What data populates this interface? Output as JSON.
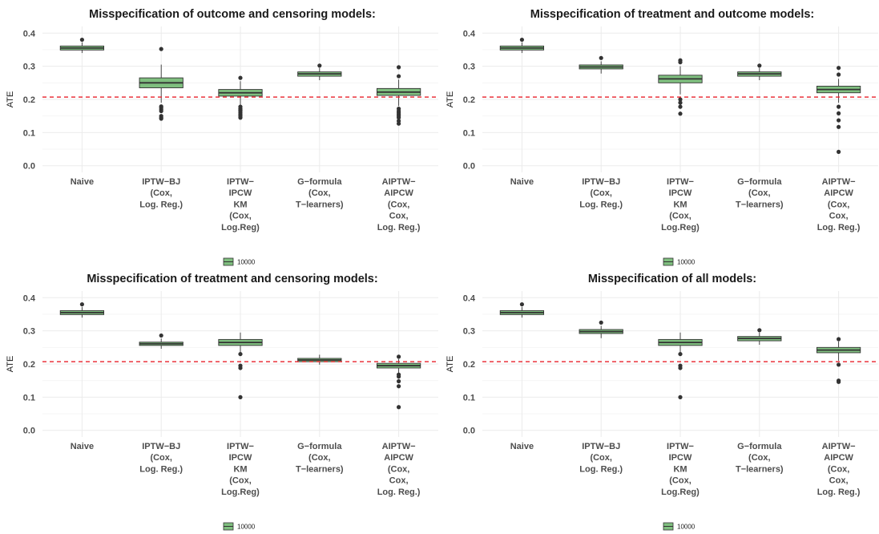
{
  "colors": {
    "box_fill": "#7FBF7F",
    "box_stroke": "#333333",
    "reference_line": "#E8202A",
    "grid": "#EBEBEB",
    "outlier": "#333333"
  },
  "legend": {
    "label": "10000"
  },
  "chart_data": [
    {
      "type": "box",
      "title": "Misspecification of outcome and censoring models:",
      "ylabel": "ATE",
      "xlabel": "",
      "ylim": [
        -0.02,
        0.42
      ],
      "yticks": [
        "0.0",
        "0.1",
        "0.2",
        "0.3",
        "0.4"
      ],
      "reference_line": 0.207,
      "series_name": "10000",
      "categories": [
        [
          "Naive"
        ],
        [
          "IPTW−BJ",
          "(Cox,",
          "Log. Reg.)"
        ],
        [
          "IPTW−",
          "IPCW",
          "KM",
          "(Cox,",
          "Log.Reg)"
        ],
        [
          "G−formula",
          "(Cox,",
          "T−learners)"
        ],
        [
          "AIPTW−",
          "AIPCW",
          "(Cox,",
          "Cox,",
          "Log. Reg.)"
        ]
      ],
      "boxes": [
        {
          "lower": 0.34,
          "q1": 0.349,
          "median": 0.355,
          "q3": 0.361,
          "upper": 0.372,
          "outliers": [
            0.38
          ]
        },
        {
          "lower": 0.19,
          "q1": 0.235,
          "median": 0.25,
          "q3": 0.265,
          "upper": 0.305,
          "outliers": [
            0.352,
            0.179,
            0.175,
            0.17,
            0.165,
            0.15,
            0.145,
            0.142
          ]
        },
        {
          "lower": 0.18,
          "q1": 0.21,
          "median": 0.22,
          "q3": 0.23,
          "upper": 0.255,
          "outliers": [
            0.265,
            0.178,
            0.172,
            0.168,
            0.165,
            0.16,
            0.155,
            0.15,
            0.145
          ]
        },
        {
          "lower": 0.258,
          "q1": 0.27,
          "median": 0.277,
          "q3": 0.283,
          "upper": 0.295,
          "outliers": [
            0.302
          ]
        },
        {
          "lower": 0.18,
          "q1": 0.212,
          "median": 0.222,
          "q3": 0.233,
          "upper": 0.26,
          "outliers": [
            0.297,
            0.27,
            0.172,
            0.165,
            0.16,
            0.155,
            0.15,
            0.145,
            0.135,
            0.127
          ]
        }
      ]
    },
    {
      "type": "box",
      "title": "Misspecification of treatment and outcome models:",
      "ylabel": "ATE",
      "xlabel": "",
      "ylim": [
        -0.02,
        0.42
      ],
      "yticks": [
        "0.0",
        "0.1",
        "0.2",
        "0.3",
        "0.4"
      ],
      "reference_line": 0.207,
      "series_name": "10000",
      "categories": [
        [
          "Naive"
        ],
        [
          "IPTW−BJ",
          "(Cox,",
          "Log. Reg.)"
        ],
        [
          "IPTW−",
          "IPCW",
          "KM",
          "(Cox,",
          "Log.Reg)"
        ],
        [
          "G−formula",
          "(Cox,",
          "T−learners)"
        ],
        [
          "AIPTW−",
          "AIPCW",
          "(Cox,",
          "Cox,",
          "Log. Reg.)"
        ]
      ],
      "boxes": [
        {
          "lower": 0.34,
          "q1": 0.349,
          "median": 0.355,
          "q3": 0.361,
          "upper": 0.372,
          "outliers": [
            0.38
          ]
        },
        {
          "lower": 0.278,
          "q1": 0.292,
          "median": 0.298,
          "q3": 0.304,
          "upper": 0.315,
          "outliers": [
            0.325
          ]
        },
        {
          "lower": 0.215,
          "q1": 0.25,
          "median": 0.262,
          "q3": 0.273,
          "upper": 0.3,
          "outliers": [
            0.318,
            0.312,
            0.2,
            0.19,
            0.178,
            0.157
          ]
        },
        {
          "lower": 0.258,
          "q1": 0.27,
          "median": 0.277,
          "q3": 0.283,
          "upper": 0.295,
          "outliers": [
            0.302
          ]
        },
        {
          "lower": 0.19,
          "q1": 0.22,
          "median": 0.23,
          "q3": 0.24,
          "upper": 0.262,
          "outliers": [
            0.295,
            0.275,
            0.178,
            0.158,
            0.137,
            0.117,
            0.042
          ]
        }
      ]
    },
    {
      "type": "box",
      "title": "Misspecification of treatment and censoring models:",
      "ylabel": "ATE",
      "xlabel": "",
      "ylim": [
        -0.02,
        0.42
      ],
      "yticks": [
        "0.0",
        "0.1",
        "0.2",
        "0.3",
        "0.4"
      ],
      "reference_line": 0.207,
      "series_name": "10000",
      "categories": [
        [
          "Naive"
        ],
        [
          "IPTW−BJ",
          "(Cox,",
          "Log. Reg.)"
        ],
        [
          "IPTW−",
          "IPCW",
          "KM",
          "(Cox,",
          "Log.Reg)"
        ],
        [
          "G−formula",
          "(Cox,",
          "T−learners)"
        ],
        [
          "AIPTW−",
          "AIPCW",
          "(Cox,",
          "Cox,",
          "Log. Reg.)"
        ]
      ],
      "boxes": [
        {
          "lower": 0.34,
          "q1": 0.349,
          "median": 0.355,
          "q3": 0.361,
          "upper": 0.372,
          "outliers": [
            0.38
          ]
        },
        {
          "lower": 0.246,
          "q1": 0.256,
          "median": 0.261,
          "q3": 0.266,
          "upper": 0.277,
          "outliers": [
            0.286
          ]
        },
        {
          "lower": 0.235,
          "q1": 0.256,
          "median": 0.265,
          "q3": 0.274,
          "upper": 0.295,
          "outliers": [
            0.23,
            0.195,
            0.188,
            0.1
          ]
        },
        {
          "lower": 0.198,
          "q1": 0.207,
          "median": 0.212,
          "q3": 0.217,
          "upper": 0.228,
          "outliers": []
        },
        {
          "lower": 0.172,
          "q1": 0.188,
          "median": 0.195,
          "q3": 0.202,
          "upper": 0.215,
          "outliers": [
            0.222,
            0.168,
            0.162,
            0.148,
            0.133,
            0.07
          ]
        }
      ]
    },
    {
      "type": "box",
      "title": "Misspecification of all models:",
      "ylabel": "ATE",
      "xlabel": "",
      "ylim": [
        -0.02,
        0.42
      ],
      "yticks": [
        "0.0",
        "0.1",
        "0.2",
        "0.3",
        "0.4"
      ],
      "reference_line": 0.207,
      "series_name": "10000",
      "categories": [
        [
          "Naive"
        ],
        [
          "IPTW−BJ",
          "(Cox,",
          "Log. Reg.)"
        ],
        [
          "IPTW−",
          "IPCW",
          "KM",
          "(Cox,",
          "Log.Reg)"
        ],
        [
          "G−formula",
          "(Cox,",
          "T−learners)"
        ],
        [
          "AIPTW−",
          "AIPCW",
          "(Cox,",
          "Cox,",
          "Log. Reg.)"
        ]
      ],
      "boxes": [
        {
          "lower": 0.34,
          "q1": 0.349,
          "median": 0.355,
          "q3": 0.361,
          "upper": 0.372,
          "outliers": [
            0.38
          ]
        },
        {
          "lower": 0.278,
          "q1": 0.292,
          "median": 0.298,
          "q3": 0.304,
          "upper": 0.315,
          "outliers": [
            0.325
          ]
        },
        {
          "lower": 0.235,
          "q1": 0.256,
          "median": 0.265,
          "q3": 0.274,
          "upper": 0.295,
          "outliers": [
            0.23,
            0.195,
            0.188,
            0.1
          ]
        },
        {
          "lower": 0.258,
          "q1": 0.27,
          "median": 0.277,
          "q3": 0.283,
          "upper": 0.295,
          "outliers": [
            0.302
          ]
        },
        {
          "lower": 0.21,
          "q1": 0.234,
          "median": 0.242,
          "q3": 0.25,
          "upper": 0.268,
          "outliers": [
            0.275,
            0.198,
            0.15,
            0.146
          ]
        }
      ]
    }
  ]
}
